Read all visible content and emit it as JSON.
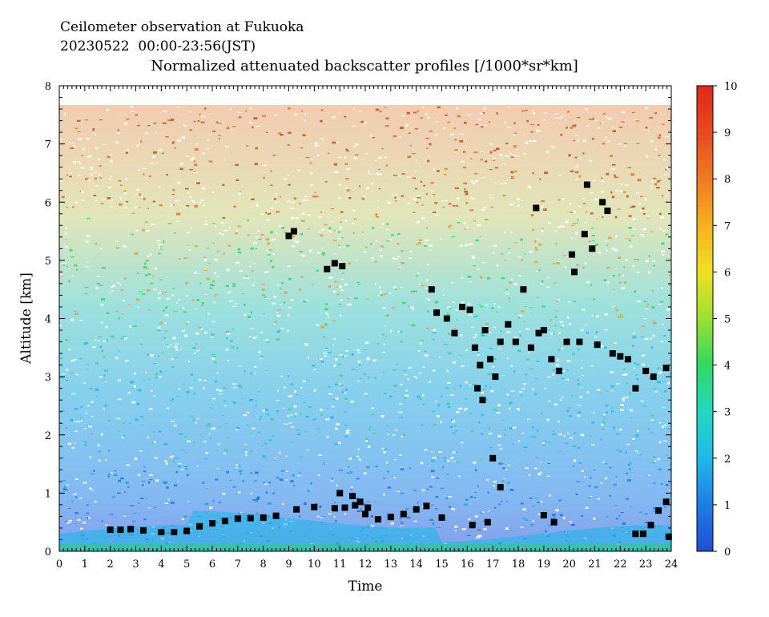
{
  "header": {
    "line1": "Ceilometer observation at Fukuoka",
    "line2": "20230522  00:00-23:56(JST)",
    "line3": "Normalized attenuated backscatter profiles [/1000*sr*km]"
  },
  "chart_data": {
    "type": "heatmap",
    "xlabel": "Time",
    "ylabel": "Altitude [km]",
    "xlim": [
      0,
      24
    ],
    "ylim": [
      0,
      8
    ],
    "xticks": [
      "0",
      "1",
      "2",
      "3",
      "4",
      "5",
      "6",
      "7",
      "8",
      "9",
      "10",
      "11",
      "12",
      "13",
      "14",
      "15",
      "16",
      "17",
      "18",
      "19",
      "20",
      "21",
      "22",
      "23",
      "24"
    ],
    "yticks": [
      "0",
      "1",
      "2",
      "3",
      "4",
      "5",
      "6",
      "7",
      "8"
    ],
    "colorbar": {
      "min": 0,
      "max": 10,
      "ticks": [
        "0",
        "1",
        "2",
        "3",
        "4",
        "5",
        "6",
        "7",
        "8",
        "9",
        "10"
      ],
      "colors": [
        "#1f4fd8",
        "#1e7fe6",
        "#20b8e8",
        "#22d8c0",
        "#30d860",
        "#9ae030",
        "#f0e020",
        "#f5b020",
        "#f07a20",
        "#e84a20",
        "#e02818"
      ]
    },
    "data_top_km": 7.65,
    "cloud_base_hits": [
      {
        "t": 2.0,
        "h": 0.37
      },
      {
        "t": 2.4,
        "h": 0.37
      },
      {
        "t": 2.8,
        "h": 0.38
      },
      {
        "t": 3.3,
        "h": 0.36
      },
      {
        "t": 4.0,
        "h": 0.33
      },
      {
        "t": 4.5,
        "h": 0.33
      },
      {
        "t": 5.0,
        "h": 0.35
      },
      {
        "t": 5.5,
        "h": 0.43
      },
      {
        "t": 6.0,
        "h": 0.48
      },
      {
        "t": 6.5,
        "h": 0.52
      },
      {
        "t": 7.0,
        "h": 0.56
      },
      {
        "t": 7.5,
        "h": 0.57
      },
      {
        "t": 8.0,
        "h": 0.58
      },
      {
        "t": 8.5,
        "h": 0.61
      },
      {
        "t": 9.3,
        "h": 0.72
      },
      {
        "t": 10.0,
        "h": 0.76
      },
      {
        "t": 10.8,
        "h": 0.74
      },
      {
        "t": 11.2,
        "h": 0.75
      },
      {
        "t": 11.6,
        "h": 0.79
      },
      {
        "t": 12.0,
        "h": 0.64
      },
      {
        "t": 12.5,
        "h": 0.55
      },
      {
        "t": 13.0,
        "h": 0.59
      },
      {
        "t": 13.5,
        "h": 0.64
      },
      {
        "t": 14.0,
        "h": 0.72
      },
      {
        "t": 14.4,
        "h": 0.78
      },
      {
        "t": 9.0,
        "h": 5.42
      },
      {
        "t": 9.2,
        "h": 5.5
      },
      {
        "t": 10.5,
        "h": 4.85
      },
      {
        "t": 10.8,
        "h": 4.95
      },
      {
        "t": 11.1,
        "h": 4.9
      },
      {
        "t": 11.0,
        "h": 1.0
      },
      {
        "t": 11.5,
        "h": 0.95
      },
      {
        "t": 11.8,
        "h": 0.85
      },
      {
        "t": 12.1,
        "h": 0.75
      },
      {
        "t": 14.6,
        "h": 4.5
      },
      {
        "t": 14.8,
        "h": 4.1
      },
      {
        "t": 15.2,
        "h": 4.0
      },
      {
        "t": 15.5,
        "h": 3.75
      },
      {
        "t": 15.8,
        "h": 4.2
      },
      {
        "t": 16.1,
        "h": 4.15
      },
      {
        "t": 16.3,
        "h": 3.5
      },
      {
        "t": 16.5,
        "h": 3.2
      },
      {
        "t": 16.7,
        "h": 3.8
      },
      {
        "t": 16.9,
        "h": 3.3
      },
      {
        "t": 17.1,
        "h": 3.0
      },
      {
        "t": 17.3,
        "h": 3.6
      },
      {
        "t": 16.8,
        "h": 0.5
      },
      {
        "t": 16.2,
        "h": 0.45
      },
      {
        "t": 16.4,
        "h": 2.8
      },
      {
        "t": 16.6,
        "h": 2.6
      },
      {
        "t": 17.0,
        "h": 1.6
      },
      {
        "t": 17.3,
        "h": 1.1
      },
      {
        "t": 17.6,
        "h": 3.9
      },
      {
        "t": 17.9,
        "h": 3.6
      },
      {
        "t": 18.2,
        "h": 4.5
      },
      {
        "t": 18.5,
        "h": 3.5
      },
      {
        "t": 18.7,
        "h": 5.9
      },
      {
        "t": 18.8,
        "h": 3.75
      },
      {
        "t": 19.0,
        "h": 3.8
      },
      {
        "t": 19.3,
        "h": 3.3
      },
      {
        "t": 19.6,
        "h": 3.1
      },
      {
        "t": 19.9,
        "h": 3.6
      },
      {
        "t": 20.1,
        "h": 5.1
      },
      {
        "t": 20.2,
        "h": 4.8
      },
      {
        "t": 20.4,
        "h": 3.6
      },
      {
        "t": 20.6,
        "h": 5.45
      },
      {
        "t": 20.7,
        "h": 6.3
      },
      {
        "t": 20.9,
        "h": 5.2
      },
      {
        "t": 21.1,
        "h": 3.55
      },
      {
        "t": 21.3,
        "h": 6.0
      },
      {
        "t": 21.5,
        "h": 5.85
      },
      {
        "t": 21.7,
        "h": 3.4
      },
      {
        "t": 22.0,
        "h": 3.35
      },
      {
        "t": 22.3,
        "h": 3.3
      },
      {
        "t": 22.6,
        "h": 2.8
      },
      {
        "t": 23.0,
        "h": 3.1
      },
      {
        "t": 23.3,
        "h": 3.0
      },
      {
        "t": 23.8,
        "h": 3.15
      },
      {
        "t": 19.0,
        "h": 0.62
      },
      {
        "t": 19.4,
        "h": 0.5
      },
      {
        "t": 15.0,
        "h": 0.58
      },
      {
        "t": 22.6,
        "h": 0.3
      },
      {
        "t": 22.9,
        "h": 0.3
      },
      {
        "t": 23.2,
        "h": 0.45
      },
      {
        "t": 23.5,
        "h": 0.7
      },
      {
        "t": 23.8,
        "h": 0.85
      },
      {
        "t": 23.9,
        "h": 0.25
      }
    ]
  }
}
